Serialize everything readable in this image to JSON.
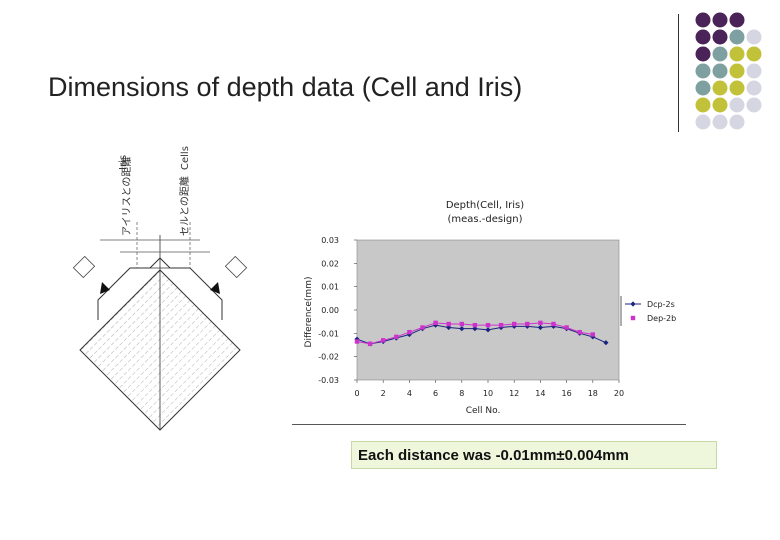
{
  "slide": {
    "title": "Dimensions of depth data (Cell and Iris)",
    "caption": "Each distance was -0.01mm±0.004mm"
  },
  "decor": {
    "dot_colors": [
      "#4a2458",
      "#7fa0a0",
      "#c2c23a",
      "#d6d6e2"
    ]
  },
  "drawing": {
    "label_iris": "Iris",
    "label_cells": "Cells",
    "label_iris_dim": "アイリスとの距離",
    "label_cell_dim": "セルとの距離"
  },
  "chart_data": {
    "type": "line",
    "title": "Depth(Cell, Iris)",
    "subtitle": "(meas.-design)",
    "xlabel": "Cell No.",
    "ylabel": "Difference(mm)",
    "xlim": [
      0,
      20
    ],
    "ylim": [
      -0.03,
      0.03
    ],
    "xticks": [
      "0",
      "2",
      "4",
      "6",
      "8",
      "10",
      "12",
      "14",
      "16",
      "18",
      "20"
    ],
    "yticks": [
      "0.03",
      "0.02",
      "0.01",
      "0.00",
      "-0.01",
      "-0.02",
      "-0.03"
    ],
    "legend": "right",
    "grid": false,
    "plot_bg": "#c8c8c8",
    "series": [
      {
        "name": "Dcp-2s",
        "color": "#1a237e",
        "marker": "diamond",
        "x": [
          0,
          1,
          2,
          3,
          4,
          5,
          6,
          7,
          8,
          9,
          10,
          11,
          12,
          13,
          14,
          15,
          16,
          17,
          18,
          19
        ],
        "y": [
          -0.0125,
          -0.0145,
          -0.0135,
          -0.012,
          -0.0105,
          -0.008,
          -0.0065,
          -0.0075,
          -0.008,
          -0.008,
          -0.0085,
          -0.0075,
          -0.007,
          -0.007,
          -0.0075,
          -0.007,
          -0.008,
          -0.01,
          -0.0115,
          -0.014
        ]
      },
      {
        "name": "Dep-2b",
        "color": "#cc33cc",
        "marker": "square",
        "x": [
          0,
          1,
          2,
          3,
          4,
          5,
          6,
          7,
          8,
          9,
          10,
          11,
          12,
          13,
          14,
          15,
          16,
          17,
          18,
          19
        ],
        "y": [
          -0.0135,
          -0.0145,
          -0.013,
          -0.0115,
          -0.0095,
          -0.0075,
          -0.0055,
          -0.006,
          -0.006,
          -0.0065,
          -0.0065,
          -0.0065,
          -0.006,
          -0.006,
          -0.0055,
          -0.006,
          -0.0075,
          -0.0095,
          -0.0105,
          null
        ]
      }
    ]
  }
}
